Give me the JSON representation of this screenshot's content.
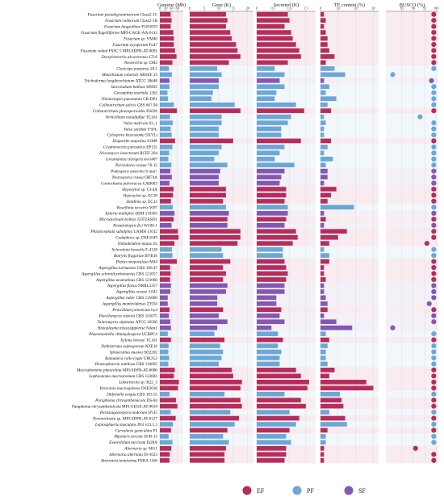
{
  "chart_data": {
    "type": "bar",
    "colors": {
      "EF": "#b52d5c",
      "PF": "#6ca7d6",
      "SF": "#8258b3",
      "grid": "#dddddd",
      "axis": "#666666"
    },
    "legend": {
      "placement": "bottom-right",
      "entries": [
        "EF",
        "PF",
        "SF"
      ]
    },
    "categories": [
      {
        "genus": "Fusarium",
        "tail": "pseudograminearum",
        "strain": "Class2-1C",
        "group": "EF"
      },
      {
        "genus": "Fusarium",
        "tail": "culmorum",
        "strain": "Class2-1B",
        "group": "EF"
      },
      {
        "genus": "Fusarium",
        "tail": "langsethiae",
        "strain": "Fl201059",
        "group": "EF"
      },
      {
        "genus": "Fusarium",
        "tail": "flagelliforme",
        "strain": "MPI-CAGE-AA-0113",
        "group": "EF"
      },
      {
        "genus": "Fusarium",
        "tail": "sp.",
        "strain": "VM40",
        "group": "EF"
      },
      {
        "genus": "Fusarium",
        "tail": "oxysporum",
        "strain": "Fo47",
        "group": "EF"
      },
      {
        "genus": "Fusarium",
        "tail": "solani",
        "strain": "FSSC 5 MPI-SDFR-AT-0091",
        "group": "EF"
      },
      {
        "genus": "Dactylonectria",
        "tail": "alcacerensis",
        "strain": "CT-6",
        "group": "EF"
      },
      {
        "genus": "Neonectria",
        "tail": "sp.",
        "strain": "DH2",
        "group": "EF"
      },
      {
        "genus": "Claviceps",
        "tail": "purpurea",
        "strain": "20.1",
        "group": "PF"
      },
      {
        "genus": "Metarhizium",
        "tail": "robertsii",
        "strain": "ARSEF 23",
        "group": "PF"
      },
      {
        "genus": "Trichoderma",
        "tail": "longibrachiatum",
        "strain": "ATCC 18648",
        "group": "SF"
      },
      {
        "genus": "Sarocladium",
        "tail": "bulbiae",
        "strain": "HND5",
        "group": "PF"
      },
      {
        "genus": "Geosmithia",
        "tail": "morbida",
        "strain": "1262",
        "group": "PF"
      },
      {
        "genus": "Thielaviopsis",
        "tail": "punctulata",
        "strain": "CR-DP1",
        "group": "PF"
      },
      {
        "genus": "Colletotrichum",
        "tail": "salicis",
        "strain": "CBS 607.94",
        "group": "PF"
      },
      {
        "genus": "Colletotrichum",
        "tail": "gloeosporioides",
        "strain": "ES026",
        "group": "EF"
      },
      {
        "genus": "Verticillium",
        "tail": "nonalfalfae",
        "strain": "TC161",
        "group": "PF"
      },
      {
        "genus": "Valsa",
        "tail": "malicola",
        "strain": "03_1",
        "group": "PF"
      },
      {
        "genus": "Valsa",
        "tail": "sordida",
        "strain": "YSFL",
        "group": "PF"
      },
      {
        "genus": "Cytospora",
        "tail": "leucostoma",
        "strain": "SXYLt",
        "group": "PF"
      },
      {
        "genus": "Diaporthe",
        "tail": "ampelina",
        "strain": "S3MP",
        "group": "EF"
      },
      {
        "genus": "Cryphonectria",
        "tail": "parasitica",
        "strain": "EP155",
        "group": "PF"
      },
      {
        "genus": "Niveomyces",
        "tail": "insectorum",
        "strain": "RCEF 264",
        "group": "PF"
      },
      {
        "genus": "Grosmannia",
        "tail": "clavigera",
        "strain": "kw1407",
        "group": "PF"
      },
      {
        "genus": "Pyricularia",
        "tail": "oryzae",
        "strain": "70-15",
        "group": "PF"
      },
      {
        "genus": "Podospora",
        "tail": "anserina",
        "strain": "S mat+",
        "group": "SF"
      },
      {
        "genus": "Neurospora",
        "tail": "crassa",
        "strain": "OR74A",
        "group": "SF"
      },
      {
        "genus": "Coniochaeta",
        "tail": "pulveracea",
        "strain": "CAB683",
        "group": "SF"
      },
      {
        "genus": "Hypoxylon",
        "tail": "sp.",
        "strain": "CI-4A",
        "group": "EF"
      },
      {
        "genus": "Hypoxylon",
        "tail": "sp.",
        "strain": "EC38",
        "group": "EF"
      },
      {
        "genus": "Daldinia",
        "tail": "sp.",
        "strain": "EC12",
        "group": "EF"
      },
      {
        "genus": "Rosellinia",
        "tail": "necatrix",
        "strain": "W97",
        "group": "PF"
      },
      {
        "genus": "Xylaria",
        "tail": "multiplex",
        "strain": "DSM 110363",
        "group": "SF"
      },
      {
        "genus": "Microdochium",
        "tail": "bolleyi",
        "strain": "J235TASD1",
        "group": "EF"
      },
      {
        "genus": "Pestalotiopsis",
        "tail": "fici",
        "strain": "W106-1",
        "group": "SF"
      },
      {
        "genus": "Phialocephala",
        "tail": "subalpina",
        "strain": "UAMH 11012",
        "group": "EF"
      },
      {
        "genus": "Cadophora",
        "tail": "sp.",
        "strain": "DSE1049",
        "group": "EF"
      },
      {
        "genus": "Oidiodendron",
        "tail": "maius",
        "strain": "Zn",
        "group": "EF"
      },
      {
        "genus": "Sclerotinia",
        "tail": "borealis",
        "strain": "F-4128",
        "group": "PF"
      },
      {
        "genus": "Botrytis",
        "tail": "fragariae",
        "strain": "BVB16",
        "group": "PF"
      },
      {
        "genus": "Peziza",
        "tail": "neoporulosa",
        "strain": "M44",
        "group": "EF"
      },
      {
        "genus": "Aspergillus",
        "tail": "luchuensis",
        "strain": "CBS 106.47",
        "group": "EF"
      },
      {
        "genus": "Aspergillus",
        "tail": "sclerotiicarbonarius",
        "strain": "CBS 121057",
        "group": "EF"
      },
      {
        "genus": "Aspergillus",
        "tail": "aculeatinus",
        "strain": "CBS 121060",
        "group": "EF"
      },
      {
        "genus": "Aspergillus",
        "tail": "flavus",
        "strain": "NRRL3357",
        "group": "SF"
      },
      {
        "genus": "Aspergillus",
        "tail": "oryzae",
        "strain": "3.042",
        "group": "SF"
      },
      {
        "genus": "Aspergillus",
        "tail": "ruber",
        "strain": "CBS 135680",
        "group": "SF"
      },
      {
        "genus": "Aspergillus",
        "tail": "montevidensis",
        "strain": "ZYD4",
        "group": "SF"
      },
      {
        "genus": "Penicillium",
        "tail": "polonicum",
        "strain": "hy4",
        "group": "EF"
      },
      {
        "genus": "Paecilomyces",
        "tail": "variotii",
        "strain": "CBS 101075",
        "group": "SF"
      },
      {
        "genus": "Talaromyces",
        "tail": "stipitatus",
        "strain": "ATCC 10500",
        "group": "SF"
      },
      {
        "genus": "Histoplasma",
        "tail": "mississippiense",
        "strain": "NAm1",
        "group": "SF"
      },
      {
        "genus": "Phaeomoniella",
        "tail": "chlamydospora",
        "strain": "UCRPC4",
        "group": "PF"
      },
      {
        "genus": "Xylona",
        "tail": "heveae",
        "strain": "TC161",
        "group": "EF"
      },
      {
        "genus": "Dothistroma",
        "tail": "septosporum",
        "strain": "NZE10",
        "group": "PF"
      },
      {
        "genus": "Sphaerulina",
        "tail": "musiva",
        "strain": "SO2202",
        "group": "PF"
      },
      {
        "genus": "Ramularia",
        "tail": "collo-cygni",
        "strain": "URUG2",
        "group": "PF"
      },
      {
        "genus": "Teratosphaeria",
        "tail": "nubilosa",
        "strain": "CBS 116005",
        "group": "PF"
      },
      {
        "genus": "Macrophomina",
        "tail": "phaseolina",
        "strain": "MPI-SDFR-AT-0080",
        "group": "EF"
      },
      {
        "genus": "Lophiostoma",
        "tail": "macrostomum",
        "strain": "CBS 122681",
        "group": "EF"
      },
      {
        "genus": "Laburnicola",
        "tail": "sp.",
        "strain": "R22_3",
        "group": "EF"
      },
      {
        "genus": "Periconia",
        "tail": "macrospinosa",
        "strain": "DSE2036",
        "group": "EF"
      },
      {
        "genus": "Didymella",
        "tail": "exigua",
        "strain": "CBS 183.55",
        "group": "PF"
      },
      {
        "genus": "Paraphoma",
        "tail": "chrysanthemicola",
        "strain": "DS-84",
        "group": "EF"
      },
      {
        "genus": "",
        "tail": "Paraphoma chrysanthemicola",
        "strain": "MPI-GEGE-AT-0034",
        "group": "EF"
      },
      {
        "genus": "Parastagonospora",
        "tail": "nodorum",
        "strain": "SN15",
        "group": "PF"
      },
      {
        "genus": "Pyrenochaeta",
        "tail": "sp.",
        "strain": "MPI-SDFR-AT-0127",
        "group": "EF"
      },
      {
        "genus": "Leptosphaeria",
        "tail": "maculans",
        "strain": "JN3 v23.1.3",
        "group": "PF"
      },
      {
        "genus": "Curvularia",
        "tail": "geniculata",
        "strain": "P1",
        "group": "EF"
      },
      {
        "genus": "Bipolaris",
        "tail": "zeicola",
        "strain": "26-R-13",
        "group": "PF"
      },
      {
        "genus": "Exserohilum",
        "tail": "turcicum",
        "strain": "Et28A",
        "group": "PF"
      },
      {
        "genus": "Alternaria",
        "tail": "sp.",
        "strain": "MG1",
        "group": "EF"
      },
      {
        "genus": "Alternaria",
        "tail": "alternata",
        "strain": "JS-1623",
        "group": "EF"
      },
      {
        "genus": "Alternaria",
        "tail": "tenuissima",
        "strain": "FERA 1166",
        "group": "EF"
      }
    ],
    "panels": [
      {
        "title": "Genome (Mb)",
        "type": "bar",
        "xlim": [
          0,
          80
        ],
        "ticks": [
          0,
          20,
          40,
          60
        ],
        "tick_labels": [
          "0",
          "20",
          "40",
          "60"
        ],
        "values": [
          37,
          40,
          37,
          46,
          48,
          48,
          52,
          57,
          43,
          31,
          41,
          33,
          33,
          26,
          28,
          48,
          58,
          35,
          44,
          37,
          40,
          52,
          43,
          32,
          29,
          39,
          36,
          41,
          33,
          47,
          45,
          38,
          44,
          50,
          47,
          40,
          62,
          64,
          50,
          41,
          43,
          58,
          35,
          37,
          35,
          38,
          36,
          27,
          27,
          33,
          31,
          36,
          38,
          27,
          38,
          30,
          29,
          32,
          29,
          51,
          48,
          65,
          62,
          33,
          55,
          60,
          37,
          54,
          45,
          38,
          30,
          43,
          39,
          34,
          33
        ]
      },
      {
        "title": "Gene (K)",
        "type": "bar",
        "xlim": [
          0,
          22
        ],
        "ticks": [
          0,
          5,
          10,
          15,
          20
        ],
        "tick_labels": [
          "0",
          "5",
          "10",
          "15",
          "20"
        ],
        "values": [
          12.5,
          13,
          12.5,
          14,
          14.5,
          16,
          16.5,
          17.5,
          13.5,
          9.5,
          11,
          10,
          10,
          8,
          7.5,
          15.5,
          17.5,
          11,
          11,
          10,
          10,
          15,
          11,
          10,
          8.5,
          13,
          10.5,
          10,
          10,
          12.5,
          12.5,
          11.5,
          12.5,
          13.5,
          13,
          13,
          17.5,
          17.5,
          16.5,
          11,
          11.5,
          14,
          11.5,
          12.5,
          11.5,
          13,
          12.5,
          9.5,
          9.5,
          11.5,
          10,
          13,
          9.5,
          8.5,
          12,
          10.5,
          11.5,
          11,
          10,
          14.5,
          15,
          18,
          17.5,
          12,
          17.5,
          18,
          14,
          17,
          15.5,
          13,
          11.5,
          13.5,
          12.5,
          12,
          12
        ]
      },
      {
        "title": "Secreted (K)",
        "type": "bar",
        "xlim": [
          0,
          1.8
        ],
        "ticks": [
          0,
          0.5,
          1,
          1.5
        ],
        "tick_labels": [
          "0",
          "0.5",
          "1.0",
          "1.5"
        ],
        "values": [
          0.95,
          1.0,
          0.85,
          1.05,
          1.1,
          1.2,
          1.3,
          1.35,
          0.95,
          0.55,
          0.85,
          0.7,
          0.85,
          0.6,
          0.55,
          1.2,
          1.45,
          1.05,
          0.95,
          0.75,
          0.75,
          1.35,
          0.85,
          0.7,
          0.55,
          1.15,
          0.85,
          0.75,
          0.7,
          0.9,
          0.9,
          0.85,
          0.95,
          0.95,
          0.9,
          0.85,
          1.2,
          1.25,
          1.1,
          0.8,
          0.8,
          0.85,
          0.9,
          0.95,
          0.9,
          0.85,
          0.85,
          0.6,
          0.6,
          0.75,
          0.7,
          0.85,
          0.45,
          0.65,
          0.8,
          0.65,
          0.75,
          0.7,
          0.7,
          1.2,
          1.35,
          1.6,
          1.55,
          0.85,
          1.35,
          1.5,
          1.0,
          1.3,
          1.2,
          1.0,
          0.9,
          1.05,
          0.9,
          0.9,
          0.85
        ]
      },
      {
        "title": "TE content (%)",
        "type": "bar",
        "xlim": [
          0,
          33
        ],
        "ticks": [
          0,
          10,
          20,
          30
        ],
        "tick_labels": [
          "0",
          "10",
          "20",
          "30"
        ],
        "values": [
          2,
          3,
          2,
          3,
          4,
          4,
          5,
          8,
          3,
          8,
          14,
          2,
          5,
          3,
          9,
          4,
          6,
          2,
          3,
          2,
          2,
          6,
          4,
          2,
          7,
          3,
          4,
          4,
          2,
          9,
          6,
          4,
          19,
          2,
          3,
          2,
          15,
          10,
          5,
          2,
          5,
          5,
          2,
          2,
          3,
          2,
          2,
          3,
          4,
          4,
          2,
          9,
          18,
          3,
          5,
          4,
          3,
          3,
          4,
          8,
          5,
          26,
          30,
          11,
          12,
          13,
          5,
          14,
          15,
          4,
          3,
          3,
          2,
          2,
          2
        ]
      },
      {
        "title": "BUSCO (%)",
        "type": "scatter",
        "xlim": [
          78,
          101
        ],
        "ticks": [
          85,
          90,
          95,
          100
        ],
        "tick_labels": [
          "85",
          "90",
          "95",
          "100"
        ],
        "values": [
          99,
          99,
          99,
          99,
          99,
          99,
          99,
          99,
          99,
          99,
          81,
          98,
          99,
          99,
          99,
          99,
          99,
          93,
          99,
          99,
          99,
          99,
          99,
          99,
          99,
          99,
          99,
          99,
          99,
          99,
          99,
          99,
          99,
          99,
          99,
          99,
          99,
          99,
          96,
          99,
          99,
          99,
          99,
          99,
          99,
          99,
          99,
          99,
          97,
          99,
          99,
          99,
          81,
          99,
          99,
          99,
          99,
          99,
          99,
          99,
          99,
          99,
          99,
          99,
          99,
          99,
          99,
          99,
          99,
          99,
          99,
          99,
          91,
          99,
          99
        ]
      }
    ]
  }
}
